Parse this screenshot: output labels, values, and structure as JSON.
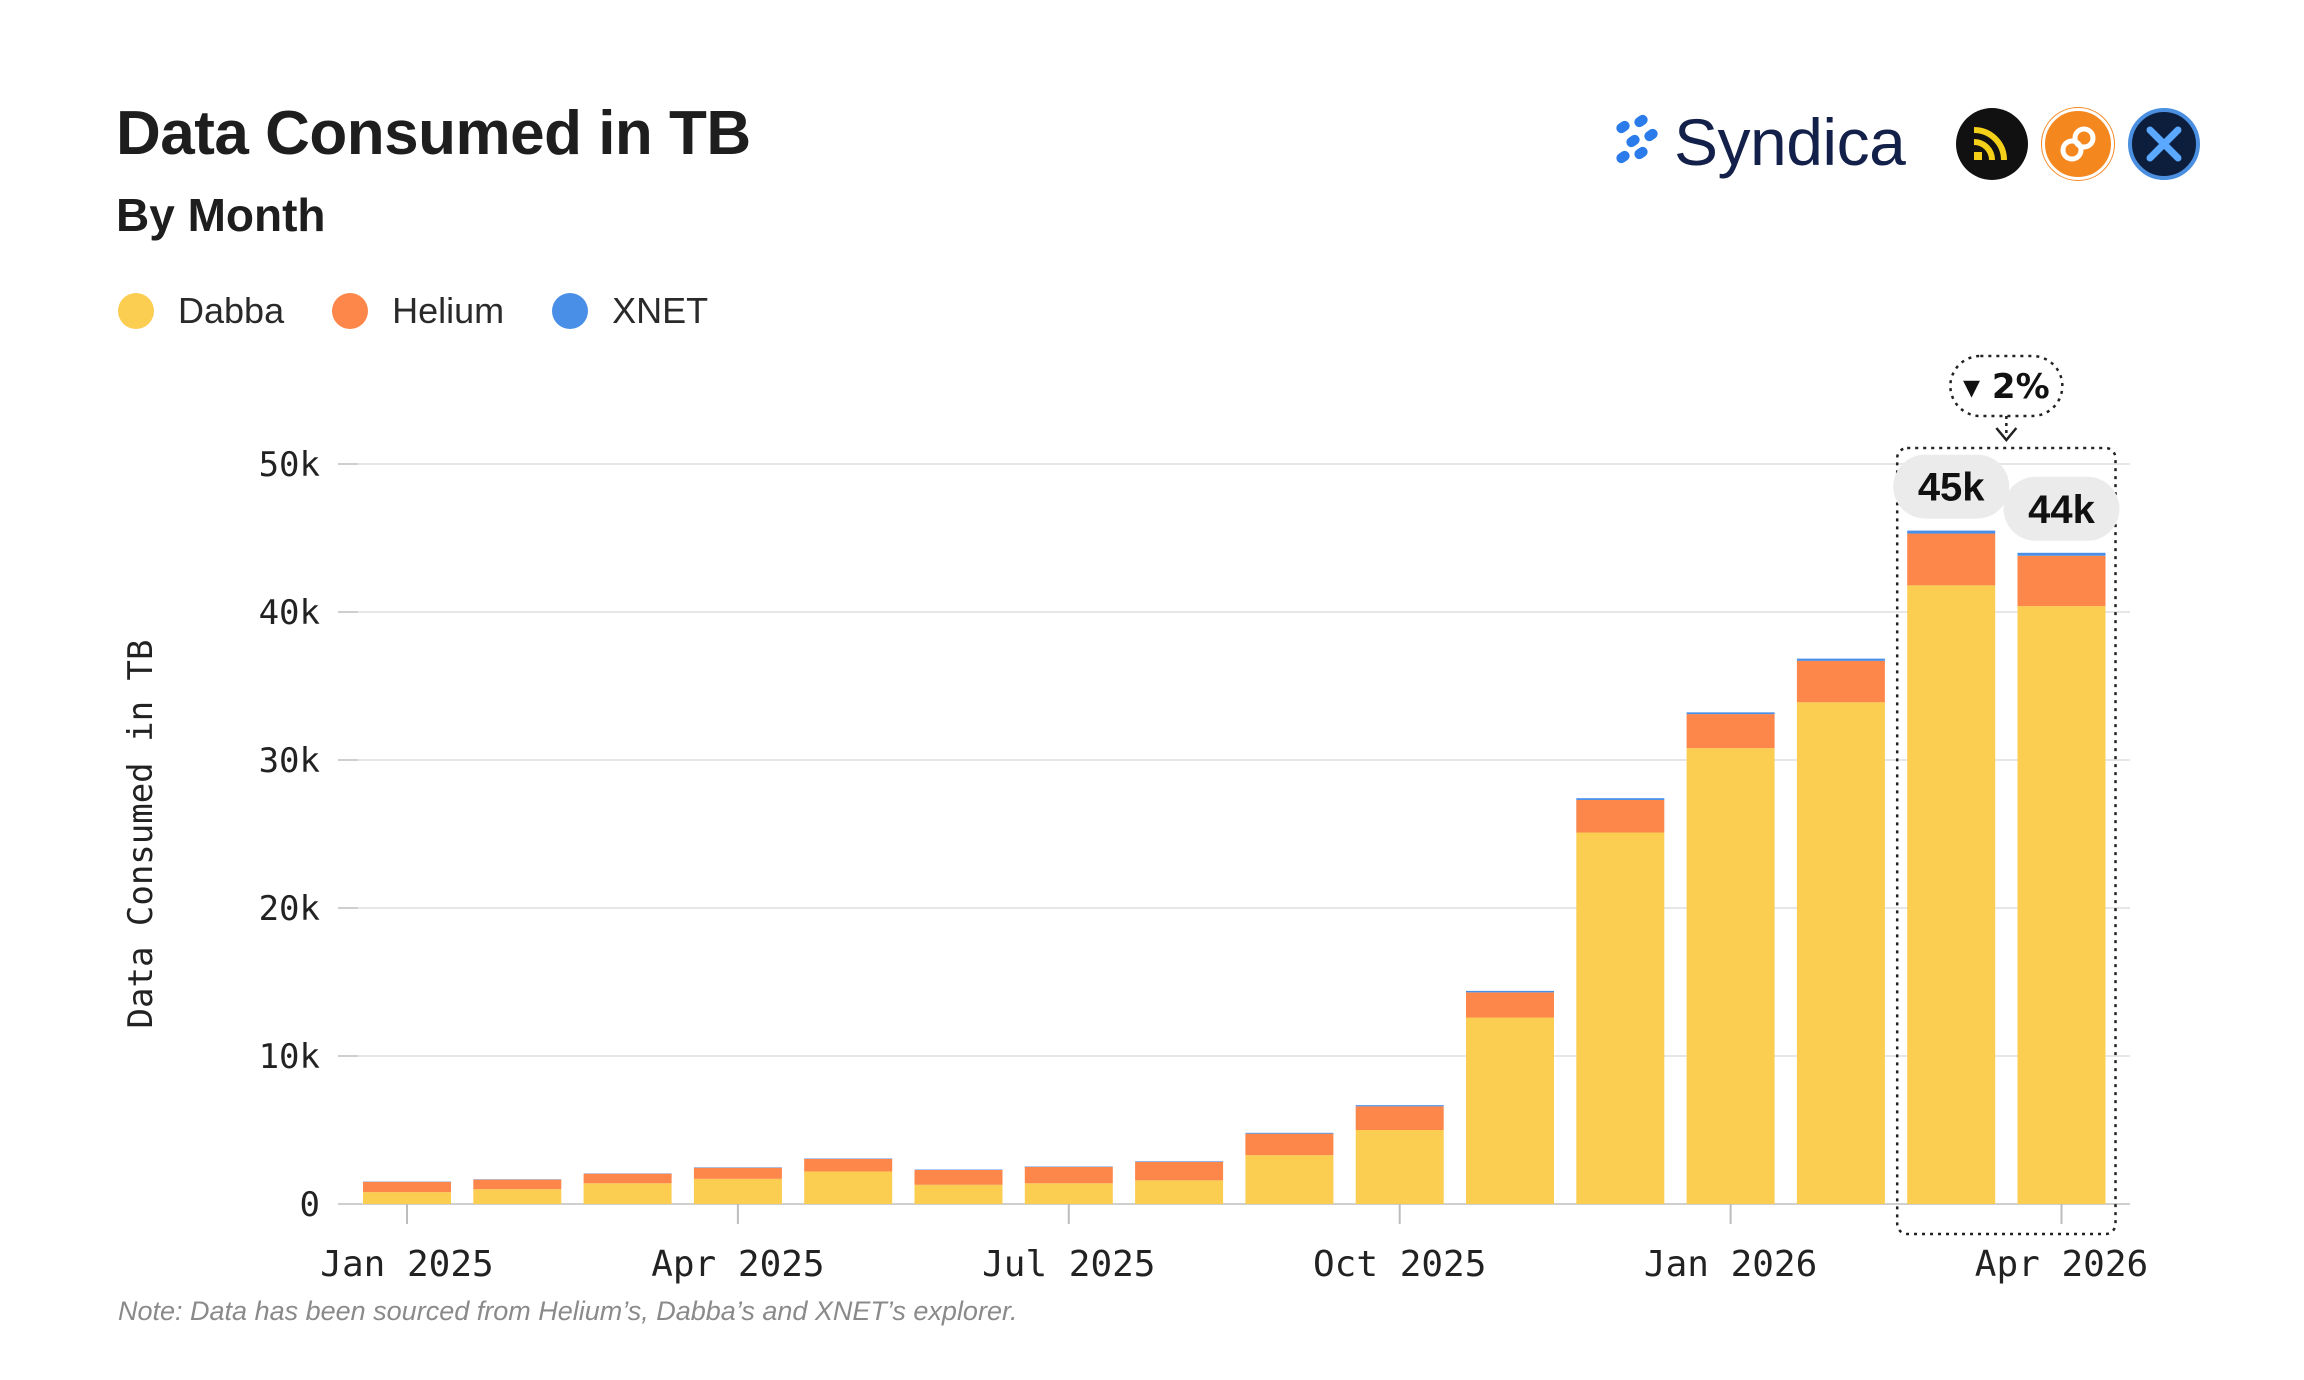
{
  "header": {
    "title": "Data Consumed in TB",
    "subtitle": "By Month",
    "brand": "Syndica"
  },
  "badges": [
    {
      "icon": "wifi-signal-icon",
      "color": "#111111"
    },
    {
      "icon": "helium-icon",
      "color": "#f5871f"
    },
    {
      "icon": "xnet-icon",
      "color": "#0c1e3c"
    }
  ],
  "note": "Note: Data has been sourced from Helium’s, Dabba’s and XNET’s explorer.",
  "colors": {
    "Dabba": "#fbcd50",
    "Helium": "#fd864a",
    "XNET": "#4a8fe7",
    "grid": "#e6e6e6"
  },
  "chart_data": {
    "type": "bar",
    "stacked": true,
    "ylabel": "Data Consumed in TB",
    "ylim": [
      0,
      50000
    ],
    "yticks": [
      0,
      10000,
      20000,
      30000,
      40000,
      50000
    ],
    "ytick_labels": [
      "0",
      "10k",
      "20k",
      "30k",
      "40k",
      "50k"
    ],
    "categories": [
      "Jan 2025",
      "Feb 2025",
      "Mar 2025",
      "Apr 2025",
      "May 2025",
      "Jun 2025",
      "Jul 2025",
      "Aug 2025",
      "Sep 2025",
      "Oct 2025",
      "Nov 2025",
      "Dec 2025",
      "Jan 2026",
      "Feb 2026",
      "Mar 2026",
      "Apr 2026"
    ],
    "xtick_labels": [
      "Jan 2025",
      "",
      "",
      "Apr 2025",
      "",
      "",
      "Jul 2025",
      "",
      "",
      "Oct 2025",
      "",
      "",
      "Jan 2026",
      "",
      "",
      "Apr 2026"
    ],
    "series": [
      {
        "name": "Dabba",
        "values": [
          800,
          1000,
          1400,
          1700,
          2200,
          1300,
          1400,
          1600,
          3300,
          5000,
          12600,
          25100,
          30800,
          33900,
          41800,
          40400
        ]
      },
      {
        "name": "Helium",
        "values": [
          700,
          650,
          650,
          750,
          850,
          1000,
          1100,
          1250,
          1450,
          1600,
          1700,
          2200,
          2300,
          2800,
          3500,
          3400
        ]
      },
      {
        "name": "XNET",
        "values": [
          20,
          20,
          20,
          30,
          30,
          30,
          30,
          40,
          60,
          80,
          100,
          120,
          120,
          150,
          200,
          200
        ]
      }
    ],
    "legend_position": "top-left",
    "grid": true,
    "annotations": {
      "highlight_labels": [
        "45k",
        "44k"
      ],
      "change_label": "▾ 2%"
    }
  }
}
